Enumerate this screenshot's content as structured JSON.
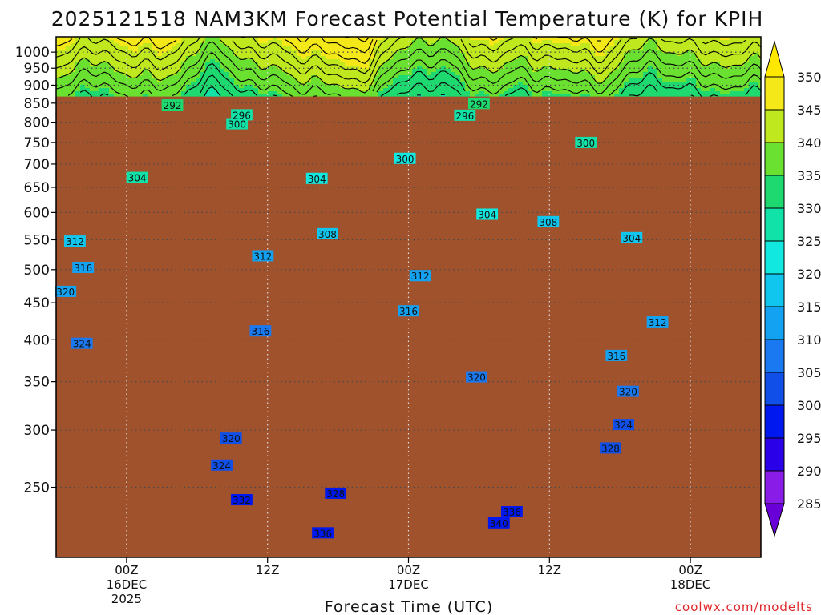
{
  "title": "2025121518 NAM3KM Forecast Potential Temperature (K) for KPIH",
  "credit": "coolwx.com/modelts",
  "colors": {
    "ground": "#a0522d",
    "axis": "#000000",
    "grid": "#7a7a7a"
  },
  "chart_data": {
    "type": "heatmap",
    "title": "2025121518 NAM3KM Forecast Potential Temperature (K) for KPIH",
    "xlabel": "Forecast Time (UTC)",
    "ylabel": "",
    "y_axis": {
      "scale": "pressure",
      "range_hpa": [
        1050,
        200
      ],
      "tick_values": [
        250,
        300,
        350,
        400,
        450,
        500,
        550,
        600,
        650,
        700,
        750,
        800,
        850,
        900,
        950,
        1000
      ],
      "tick_labels": [
        "250",
        "300",
        "350",
        "400",
        "450",
        "500",
        "550",
        "600",
        "650",
        "700",
        "750",
        "800",
        "850",
        "900",
        "950",
        "1000"
      ]
    },
    "x_axis": {
      "range_forecast_hours": [
        0,
        60
      ],
      "ticks": [
        {
          "hour": 6,
          "lines": [
            "00Z",
            "16DEC",
            "2025"
          ]
        },
        {
          "hour": 18,
          "lines": [
            "12Z"
          ]
        },
        {
          "hour": 30,
          "lines": [
            "00Z",
            "17DEC"
          ]
        },
        {
          "hour": 42,
          "lines": [
            "12Z"
          ]
        },
        {
          "hour": 54,
          "lines": [
            "00Z",
            "18DEC"
          ]
        }
      ]
    },
    "grid": true,
    "surface_pressure_hpa": 868,
    "colorbar": {
      "units": "K",
      "levels": [
        285,
        290,
        295,
        300,
        305,
        310,
        315,
        320,
        325,
        330,
        335,
        340,
        345,
        350
      ],
      "colors": [
        "#6a00d8",
        "#8a1ce8",
        "#2a00e8",
        "#0018f0",
        "#1050e8",
        "#1a78f0",
        "#13a2f2",
        "#11c6ee",
        "#11e8e0",
        "#11e2a8",
        "#1ed870",
        "#6ae030",
        "#c0e81e",
        "#f4e818",
        "#ffe800"
      ]
    },
    "contour_interval": 2,
    "contour_labels": [
      {
        "value": 336,
        "hour": 22.7,
        "pressure": 216
      },
      {
        "value": 340,
        "hour": 37.7,
        "pressure": 223
      },
      {
        "value": 336,
        "hour": 38.8,
        "pressure": 231
      },
      {
        "value": 332,
        "hour": 15.8,
        "pressure": 240
      },
      {
        "value": 328,
        "hour": 23.8,
        "pressure": 245
      },
      {
        "value": 324,
        "hour": 14.1,
        "pressure": 268
      },
      {
        "value": 328,
        "hour": 47.2,
        "pressure": 283
      },
      {
        "value": 320,
        "hour": 14.9,
        "pressure": 292
      },
      {
        "value": 324,
        "hour": 48.3,
        "pressure": 305
      },
      {
        "value": 320,
        "hour": 48.7,
        "pressure": 339
      },
      {
        "value": 320,
        "hour": 35.8,
        "pressure": 355
      },
      {
        "value": 324,
        "hour": 2.2,
        "pressure": 395
      },
      {
        "value": 316,
        "hour": 47.7,
        "pressure": 380
      },
      {
        "value": 316,
        "hour": 17.4,
        "pressure": 411
      },
      {
        "value": 312,
        "hour": 51.2,
        "pressure": 423
      },
      {
        "value": 316,
        "hour": 30.0,
        "pressure": 438
      },
      {
        "value": 320,
        "hour": 0.8,
        "pressure": 466
      },
      {
        "value": 316,
        "hour": 2.3,
        "pressure": 503
      },
      {
        "value": 312,
        "hour": 31.0,
        "pressure": 490
      },
      {
        "value": 312,
        "hour": 17.6,
        "pressure": 522
      },
      {
        "value": 312,
        "hour": 1.6,
        "pressure": 547
      },
      {
        "value": 304,
        "hour": 49.0,
        "pressure": 553
      },
      {
        "value": 308,
        "hour": 23.1,
        "pressure": 560
      },
      {
        "value": 308,
        "hour": 41.9,
        "pressure": 582
      },
      {
        "value": 304,
        "hour": 36.7,
        "pressure": 596
      },
      {
        "value": 304,
        "hour": 6.9,
        "pressure": 670
      },
      {
        "value": 304,
        "hour": 22.2,
        "pressure": 668
      },
      {
        "value": 300,
        "hour": 29.7,
        "pressure": 712
      },
      {
        "value": 300,
        "hour": 45.1,
        "pressure": 749
      },
      {
        "value": 300,
        "hour": 15.4,
        "pressure": 795
      },
      {
        "value": 296,
        "hour": 15.8,
        "pressure": 818
      },
      {
        "value": 296,
        "hour": 34.8,
        "pressure": 817
      },
      {
        "value": 292,
        "hour": 9.9,
        "pressure": 844
      },
      {
        "value": 292,
        "hour": 36.0,
        "pressure": 848
      }
    ]
  }
}
